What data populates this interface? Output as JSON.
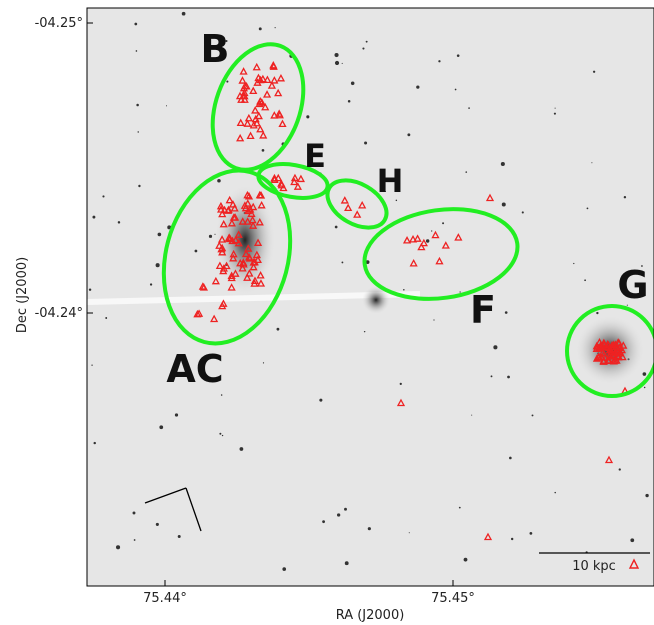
{
  "axes": {
    "x_label": "RA (J2000)",
    "y_label": "Dec (J2000)",
    "x_ticks": [
      "75.44°",
      "75.45°"
    ],
    "y_ticks": [
      "-04.25°",
      "-04.24°"
    ]
  },
  "regions": [
    "B",
    "E",
    "H",
    "F",
    "AC",
    "G"
  ],
  "scale_bar": "10 kpc"
}
